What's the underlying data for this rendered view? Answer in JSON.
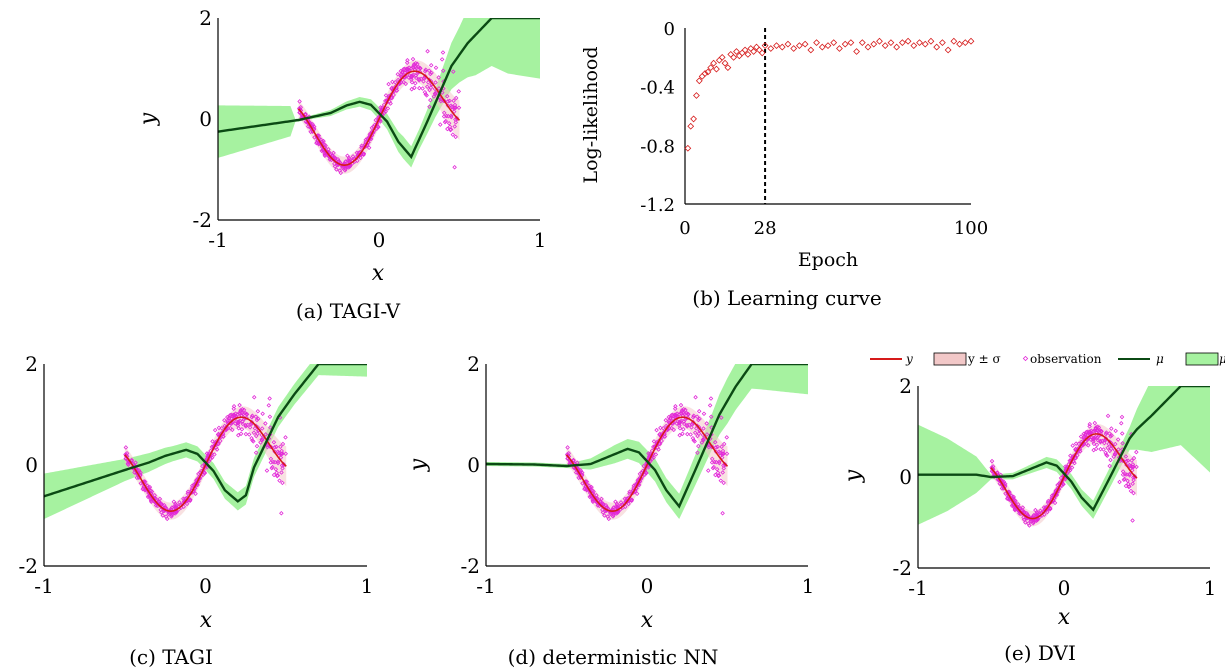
{
  "chart_data": [
    {
      "id": "a",
      "type": "scatter",
      "caption": "(a) TAGI-V",
      "xlabel": "x",
      "ylabel": "y",
      "xlim": [
        -1,
        1
      ],
      "ylim": [
        -2,
        2
      ],
      "xticks": [
        "-1",
        "0",
        "1"
      ],
      "yticks": [
        "-2",
        "0",
        "2"
      ],
      "observation_range": [
        -0.5,
        0.5
      ],
      "series": [],
      "mean": [
        [
          -1,
          -0.25
        ],
        [
          -0.5,
          -0.02
        ],
        [
          -0.4,
          0.05
        ],
        [
          -0.3,
          0.12
        ],
        [
          -0.2,
          0.27
        ],
        [
          -0.12,
          0.34
        ],
        [
          -0.05,
          0.28
        ],
        [
          0.05,
          -0.05
        ],
        [
          0.12,
          -0.45
        ],
        [
          0.2,
          -0.75
        ],
        [
          0.3,
          -0.05
        ],
        [
          0.45,
          1.05
        ],
        [
          0.55,
          1.5
        ],
        [
          0.7,
          2.0
        ]
      ],
      "band_halfwidth": [
        [
          -1,
          0.52
        ],
        [
          -0.55,
          0.3
        ],
        [
          -0.52,
          0.03
        ],
        [
          -0.4,
          0.04
        ],
        [
          -0.2,
          0.08
        ],
        [
          0,
          0.12
        ],
        [
          0.15,
          0.22
        ],
        [
          0.25,
          0.2
        ],
        [
          0.35,
          0.28
        ],
        [
          0.5,
          0.55
        ],
        [
          0.6,
          0.8
        ],
        [
          0.8,
          1.1
        ],
        [
          1,
          1.2
        ]
      ]
    },
    {
      "id": "b",
      "type": "scatter",
      "caption": "(b) Learning curve",
      "xlabel": "Epoch",
      "ylabel": "Log-likelihood",
      "xlim": [
        0,
        100
      ],
      "ylim": [
        -1.2,
        0
      ],
      "xticks": [
        "0",
        "28",
        "100"
      ],
      "yticks": [
        "0",
        "-0.4",
        "-0.8",
        "-1.2"
      ],
      "marker_epoch": 28,
      "series": [
        {
          "points": [
            [
              1,
              -0.82
            ],
            [
              2,
              -0.67
            ],
            [
              3,
              -0.62
            ],
            [
              4,
              -0.46
            ],
            [
              5,
              -0.36
            ],
            [
              6,
              -0.33
            ],
            [
              7,
              -0.31
            ],
            [
              8,
              -0.3
            ],
            [
              9,
              -0.27
            ],
            [
              10,
              -0.24
            ],
            [
              11,
              -0.28
            ],
            [
              12,
              -0.22
            ],
            [
              13,
              -0.2
            ],
            [
              14,
              -0.24
            ],
            [
              15,
              -0.27
            ],
            [
              16,
              -0.18
            ],
            [
              17,
              -0.2
            ],
            [
              18,
              -0.16
            ],
            [
              19,
              -0.19
            ],
            [
              20,
              -0.17
            ],
            [
              21,
              -0.15
            ],
            [
              22,
              -0.18
            ],
            [
              23,
              -0.14
            ],
            [
              24,
              -0.16
            ],
            [
              25,
              -0.13
            ],
            [
              26,
              -0.15
            ],
            [
              27,
              -0.17
            ],
            [
              28,
              -0.12
            ],
            [
              30,
              -0.14
            ],
            [
              32,
              -0.12
            ],
            [
              34,
              -0.13
            ],
            [
              36,
              -0.11
            ],
            [
              38,
              -0.14
            ],
            [
              40,
              -0.12
            ],
            [
              42,
              -0.11
            ],
            [
              44,
              -0.15
            ],
            [
              46,
              -0.1
            ],
            [
              48,
              -0.13
            ],
            [
              50,
              -0.12
            ],
            [
              52,
              -0.1
            ],
            [
              54,
              -0.14
            ],
            [
              56,
              -0.11
            ],
            [
              58,
              -0.1
            ],
            [
              60,
              -0.16
            ],
            [
              62,
              -0.1
            ],
            [
              64,
              -0.13
            ],
            [
              66,
              -0.11
            ],
            [
              68,
              -0.09
            ],
            [
              70,
              -0.12
            ],
            [
              72,
              -0.1
            ],
            [
              74,
              -0.13
            ],
            [
              76,
              -0.1
            ],
            [
              78,
              -0.09
            ],
            [
              80,
              -0.12
            ],
            [
              82,
              -0.1
            ],
            [
              84,
              -0.11
            ],
            [
              86,
              -0.09
            ],
            [
              88,
              -0.13
            ],
            [
              90,
              -0.1
            ],
            [
              92,
              -0.15
            ],
            [
              94,
              -0.09
            ],
            [
              96,
              -0.11
            ],
            [
              98,
              -0.1
            ],
            [
              100,
              -0.09
            ]
          ]
        }
      ]
    },
    {
      "id": "c",
      "type": "scatter",
      "caption": "(c) TAGI",
      "xlabel": "x",
      "ylabel": "y",
      "xlim": [
        -1,
        1
      ],
      "ylim": [
        -2,
        2
      ],
      "xticks": [
        "-1",
        "0",
        "1"
      ],
      "yticks": [
        "-2",
        "0",
        "2"
      ],
      "observation_range": [
        -0.5,
        0.5
      ],
      "series": [],
      "mean": [
        [
          -1,
          -0.62
        ],
        [
          -0.5,
          -0.1
        ],
        [
          -0.35,
          0.05
        ],
        [
          -0.25,
          0.18
        ],
        [
          -0.12,
          0.3
        ],
        [
          -0.05,
          0.22
        ],
        [
          0.05,
          -0.12
        ],
        [
          0.12,
          -0.5
        ],
        [
          0.2,
          -0.72
        ],
        [
          0.25,
          -0.6
        ],
        [
          0.3,
          -0.05
        ],
        [
          0.45,
          0.95
        ],
        [
          0.55,
          1.4
        ],
        [
          0.7,
          2.0
        ]
      ],
      "band_halfwidth": [
        [
          -1,
          0.45
        ],
        [
          -0.5,
          0.22
        ],
        [
          -0.2,
          0.15
        ],
        [
          0,
          0.15
        ],
        [
          0.2,
          0.18
        ],
        [
          0.5,
          0.2
        ],
        [
          1,
          0.25
        ]
      ]
    },
    {
      "id": "d",
      "type": "scatter",
      "caption": "(d) deterministic NN",
      "xlabel": "x",
      "ylabel": "y",
      "xlim": [
        -1,
        1
      ],
      "ylim": [
        -2,
        2
      ],
      "xticks": [
        "-1",
        "0",
        "1"
      ],
      "yticks": [
        "-2",
        "0",
        "2"
      ],
      "observation_range": [
        -0.5,
        0.5
      ],
      "series": [],
      "mean": [
        [
          -1,
          0.02
        ],
        [
          -0.7,
          0.01
        ],
        [
          -0.5,
          -0.02
        ],
        [
          -0.35,
          0.02
        ],
        [
          -0.25,
          0.15
        ],
        [
          -0.12,
          0.32
        ],
        [
          -0.05,
          0.25
        ],
        [
          0.05,
          -0.1
        ],
        [
          0.12,
          -0.5
        ],
        [
          0.2,
          -0.82
        ],
        [
          0.3,
          -0.1
        ],
        [
          0.45,
          1.0
        ],
        [
          0.55,
          1.55
        ],
        [
          0.65,
          2.0
        ]
      ],
      "band_halfwidth": [
        [
          -1,
          0.04
        ],
        [
          -0.6,
          0.04
        ],
        [
          -0.5,
          0.04
        ],
        [
          -0.2,
          0.18
        ],
        [
          0,
          0.22
        ],
        [
          0.2,
          0.25
        ],
        [
          0.4,
          0.35
        ],
        [
          0.5,
          0.45
        ],
        [
          0.7,
          0.5
        ],
        [
          1,
          0.6
        ]
      ]
    },
    {
      "id": "e",
      "type": "scatter",
      "caption": "(e) DVI",
      "xlabel": "x",
      "ylabel": "y",
      "xlim": [
        -1,
        1
      ],
      "ylim": [
        -2,
        2
      ],
      "xticks": [
        "-1",
        "0",
        "1"
      ],
      "yticks": [
        "-2",
        "0",
        "2"
      ],
      "observation_range": [
        -0.5,
        0.5
      ],
      "legend": [
        "y",
        "y ± σ",
        "observation",
        "μ",
        "μ"
      ],
      "series": [],
      "mean": [
        [
          -1,
          0.05
        ],
        [
          -0.7,
          0.05
        ],
        [
          -0.6,
          0.05
        ],
        [
          -0.5,
          0.0
        ],
        [
          -0.35,
          0.02
        ],
        [
          -0.25,
          0.15
        ],
        [
          -0.12,
          0.32
        ],
        [
          -0.05,
          0.25
        ],
        [
          0.05,
          -0.1
        ],
        [
          0.12,
          -0.45
        ],
        [
          0.2,
          -0.72
        ],
        [
          0.3,
          -0.1
        ],
        [
          0.45,
          0.85
        ],
        [
          0.5,
          1.05
        ],
        [
          0.6,
          1.35
        ],
        [
          0.8,
          2.0
        ]
      ],
      "band_halfwidth": [
        [
          -1,
          1.1
        ],
        [
          -0.8,
          0.8
        ],
        [
          -0.6,
          0.4
        ],
        [
          -0.5,
          0.05
        ],
        [
          -0.3,
          0.08
        ],
        [
          0,
          0.15
        ],
        [
          0.2,
          0.2
        ],
        [
          0.45,
          0.25
        ],
        [
          0.5,
          0.45
        ],
        [
          0.6,
          0.8
        ],
        [
          0.8,
          1.3
        ],
        [
          1,
          1.9
        ]
      ]
    }
  ],
  "colors": {
    "band_green": "#a6f2a0",
    "mean_line": "#0b4a14",
    "observation": "#e22ad8",
    "y_line": "#d61a1a",
    "y_band": "#f2c8c8",
    "learning_marker": "#d61a1a"
  }
}
